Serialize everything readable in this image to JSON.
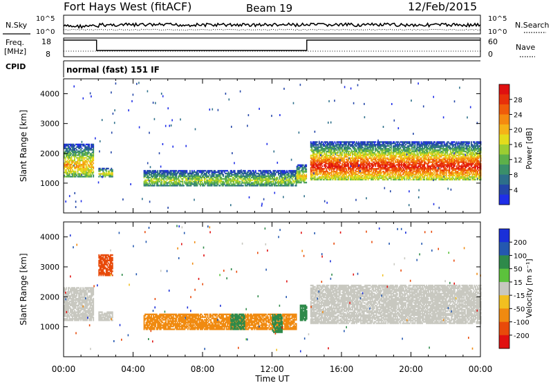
{
  "header": {
    "station": "Fort Hays West (fitACF)",
    "beam": "Beam 19",
    "date": "12/Feb/2015"
  },
  "noise_panel": {
    "left_label": "N.Sky",
    "right_label": "N.Search",
    "left_ticks": [
      "10^5",
      "10^0"
    ],
    "right_ticks": [
      "10^5",
      "10^0"
    ]
  },
  "freq_panel": {
    "left_label_1": "Freq.",
    "left_label_2": "[MHz]",
    "right_label": "Nave",
    "left_ticks": [
      "18",
      "8"
    ],
    "right_ticks": [
      "60",
      "0"
    ],
    "freq_segments": [
      {
        "start": 0.0,
        "end": 1.9,
        "value": 18
      },
      {
        "start": 1.9,
        "end": 14.0,
        "value": 8
      },
      {
        "start": 14.0,
        "end": 24.0,
        "value": 18
      }
    ]
  },
  "cpid": {
    "label": "CPID",
    "mode": "normal (fast) 151 IF"
  },
  "chart_data": [
    {
      "type": "heatmap",
      "title": "",
      "xlabel": "Time UT",
      "ylabel": "Slant Range [km]",
      "xlim": [
        0,
        24
      ],
      "ylim": [
        0,
        4500
      ],
      "x_ticks": [
        "00:00",
        "04:00",
        "08:00",
        "12:00",
        "16:00",
        "20:00",
        "00:00"
      ],
      "y_ticks": [
        "1000",
        "2000",
        "3000",
        "4000"
      ],
      "colorbar": {
        "label": "Power [dB]",
        "ticks": [
          "4",
          "8",
          "12",
          "16",
          "20",
          "24",
          "28"
        ],
        "range": [
          0,
          32
        ],
        "colors": [
          "#1f2ee8",
          "#2446a8",
          "#2d6f8a",
          "#3a8f6a",
          "#5db04a",
          "#9ccd32",
          "#e4dc1c",
          "#f5b318",
          "#f58a10",
          "#f05c0a",
          "#e8300a",
          "#e01010"
        ]
      },
      "regions": [
        {
          "t0": 0.0,
          "t1": 1.7,
          "r0": 1200,
          "r1": 2300,
          "peak": 22
        },
        {
          "t0": 2.0,
          "t1": 2.8,
          "r0": 1200,
          "r1": 1500,
          "peak": 18
        },
        {
          "t0": 4.6,
          "t1": 13.4,
          "r0": 900,
          "r1": 1400,
          "peak": 16
        },
        {
          "t0": 13.4,
          "t1": 14.0,
          "r0": 1000,
          "r1": 1600,
          "peak": 20
        },
        {
          "t0": 14.2,
          "t1": 24.0,
          "r0": 1100,
          "r1": 2400,
          "peak": 30
        }
      ]
    },
    {
      "type": "heatmap",
      "title": "",
      "xlabel": "Time UT",
      "ylabel": "Slant Range [km]",
      "xlim": [
        0,
        24
      ],
      "ylim": [
        0,
        4500
      ],
      "x_ticks": [
        "00:00",
        "04:00",
        "08:00",
        "12:00",
        "16:00",
        "20:00",
        "00:00"
      ],
      "y_ticks": [
        "1000",
        "2000",
        "3000",
        "4000"
      ],
      "colorbar": {
        "label": "Velocity [m s⁻¹]",
        "ticks": [
          "200",
          "100",
          "50",
          "15",
          "-15",
          "-50",
          "-100",
          "-200"
        ],
        "colors": [
          "#1a2fd8",
          "#2458b0",
          "#2e8a4a",
          "#5cc23c",
          "#c8c8c0",
          "#f2c020",
          "#f08a10",
          "#e84a0a",
          "#e01010"
        ]
      },
      "regions": [
        {
          "t0": 0.0,
          "t1": 1.7,
          "r0": 1200,
          "r1": 2300,
          "velocity": 0
        },
        {
          "t0": 2.0,
          "t1": 2.8,
          "r0": 1200,
          "r1": 1500,
          "velocity": 0
        },
        {
          "t0": 2.0,
          "t1": 2.8,
          "r0": 2700,
          "r1": 3400,
          "velocity": -100
        },
        {
          "t0": 4.6,
          "t1": 13.4,
          "r0": 900,
          "r1": 1400,
          "velocity": -50
        },
        {
          "t0": 9.6,
          "t1": 10.4,
          "r0": 900,
          "r1": 1400,
          "velocity": 50
        },
        {
          "t0": 12.0,
          "t1": 12.6,
          "r0": 800,
          "r1": 1400,
          "velocity": 50
        },
        {
          "t0": 13.6,
          "t1": 14.0,
          "r0": 1200,
          "r1": 1700,
          "velocity": 50
        },
        {
          "t0": 14.2,
          "t1": 24.0,
          "r0": 1100,
          "r1": 2400,
          "velocity": 0
        }
      ]
    }
  ]
}
